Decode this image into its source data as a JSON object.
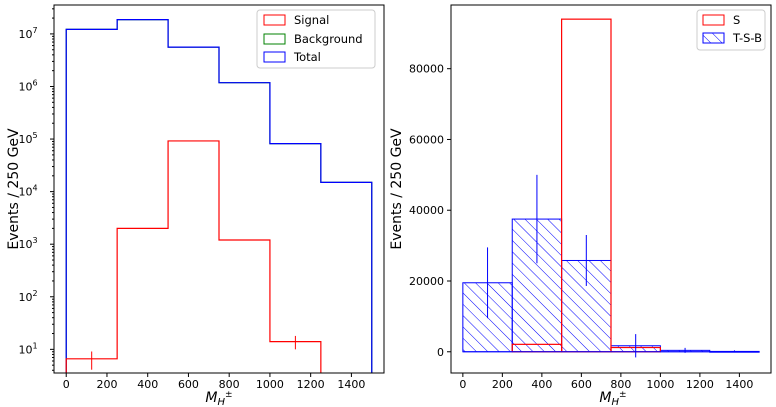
{
  "chart_data": [
    {
      "type": "step",
      "y_scale": "log",
      "xlabel": "M",
      "xlabel_sub": "H",
      "xlabel_sup": "±",
      "ylabel": "Events / 250 GeV",
      "xlim": [
        -60,
        1560
      ],
      "ylim_log10": [
        0.55,
        7.55
      ],
      "x_ticks": [
        0,
        200,
        400,
        600,
        800,
        1000,
        1200,
        1400
      ],
      "y_ticks": [
        {
          "base": "10",
          "exp": "1",
          "log": 1
        },
        {
          "base": "10",
          "exp": "2",
          "log": 2
        },
        {
          "base": "10",
          "exp": "3",
          "log": 3
        },
        {
          "base": "10",
          "exp": "4",
          "log": 4
        },
        {
          "base": "10",
          "exp": "5",
          "log": 5
        },
        {
          "base": "10",
          "exp": "6",
          "log": 6
        },
        {
          "base": "10",
          "exp": "7",
          "log": 7
        }
      ],
      "bin_edges": [
        0,
        250,
        500,
        750,
        1000,
        1250,
        1500
      ],
      "series": [
        {
          "name": "Signal",
          "color": "#ff0000",
          "values": [
            6.6,
            2000,
            92000,
            1200,
            14,
            0
          ],
          "errors": [
            2.5,
            0,
            0,
            0,
            4,
            0
          ]
        },
        {
          "name": "Background",
          "color": "#008000",
          "values": [
            12200000,
            18700000,
            5600000,
            1180000,
            82000,
            15000
          ],
          "errors": [
            0,
            0,
            0,
            0,
            0,
            0
          ]
        },
        {
          "name": "Total",
          "color": "#0000ff",
          "values": [
            12200000,
            18700000,
            5600000,
            1180000,
            82000,
            15000
          ],
          "errors": [
            0,
            0,
            0,
            0,
            0,
            0
          ]
        }
      ],
      "legend_position": "top-right"
    },
    {
      "type": "histogram",
      "xlabel": "M",
      "xlabel_sub": "H",
      "xlabel_sup": "±",
      "ylabel": "Events / 250 GeV",
      "xlim": [
        -60,
        1560
      ],
      "ylim": [
        -6000,
        98000
      ],
      "x_ticks": [
        0,
        200,
        400,
        600,
        800,
        1000,
        1200,
        1400
      ],
      "y_ticks": [
        0,
        20000,
        40000,
        60000,
        80000
      ],
      "bin_edges": [
        0,
        250,
        500,
        750,
        1000,
        1250,
        1500
      ],
      "series": [
        {
          "name": "S",
          "color": "#ff0000",
          "style": "outline",
          "values": [
            0,
            2100,
            94000,
            1200,
            0,
            0
          ]
        },
        {
          "name": "T-S-B",
          "color": "#0000ff",
          "style": "hatched",
          "values": [
            19500,
            37500,
            25800,
            1700,
            400,
            100
          ],
          "errors": [
            10000,
            12500,
            7200,
            3300,
            700,
            300
          ]
        }
      ],
      "legend_position": "top-right"
    }
  ]
}
